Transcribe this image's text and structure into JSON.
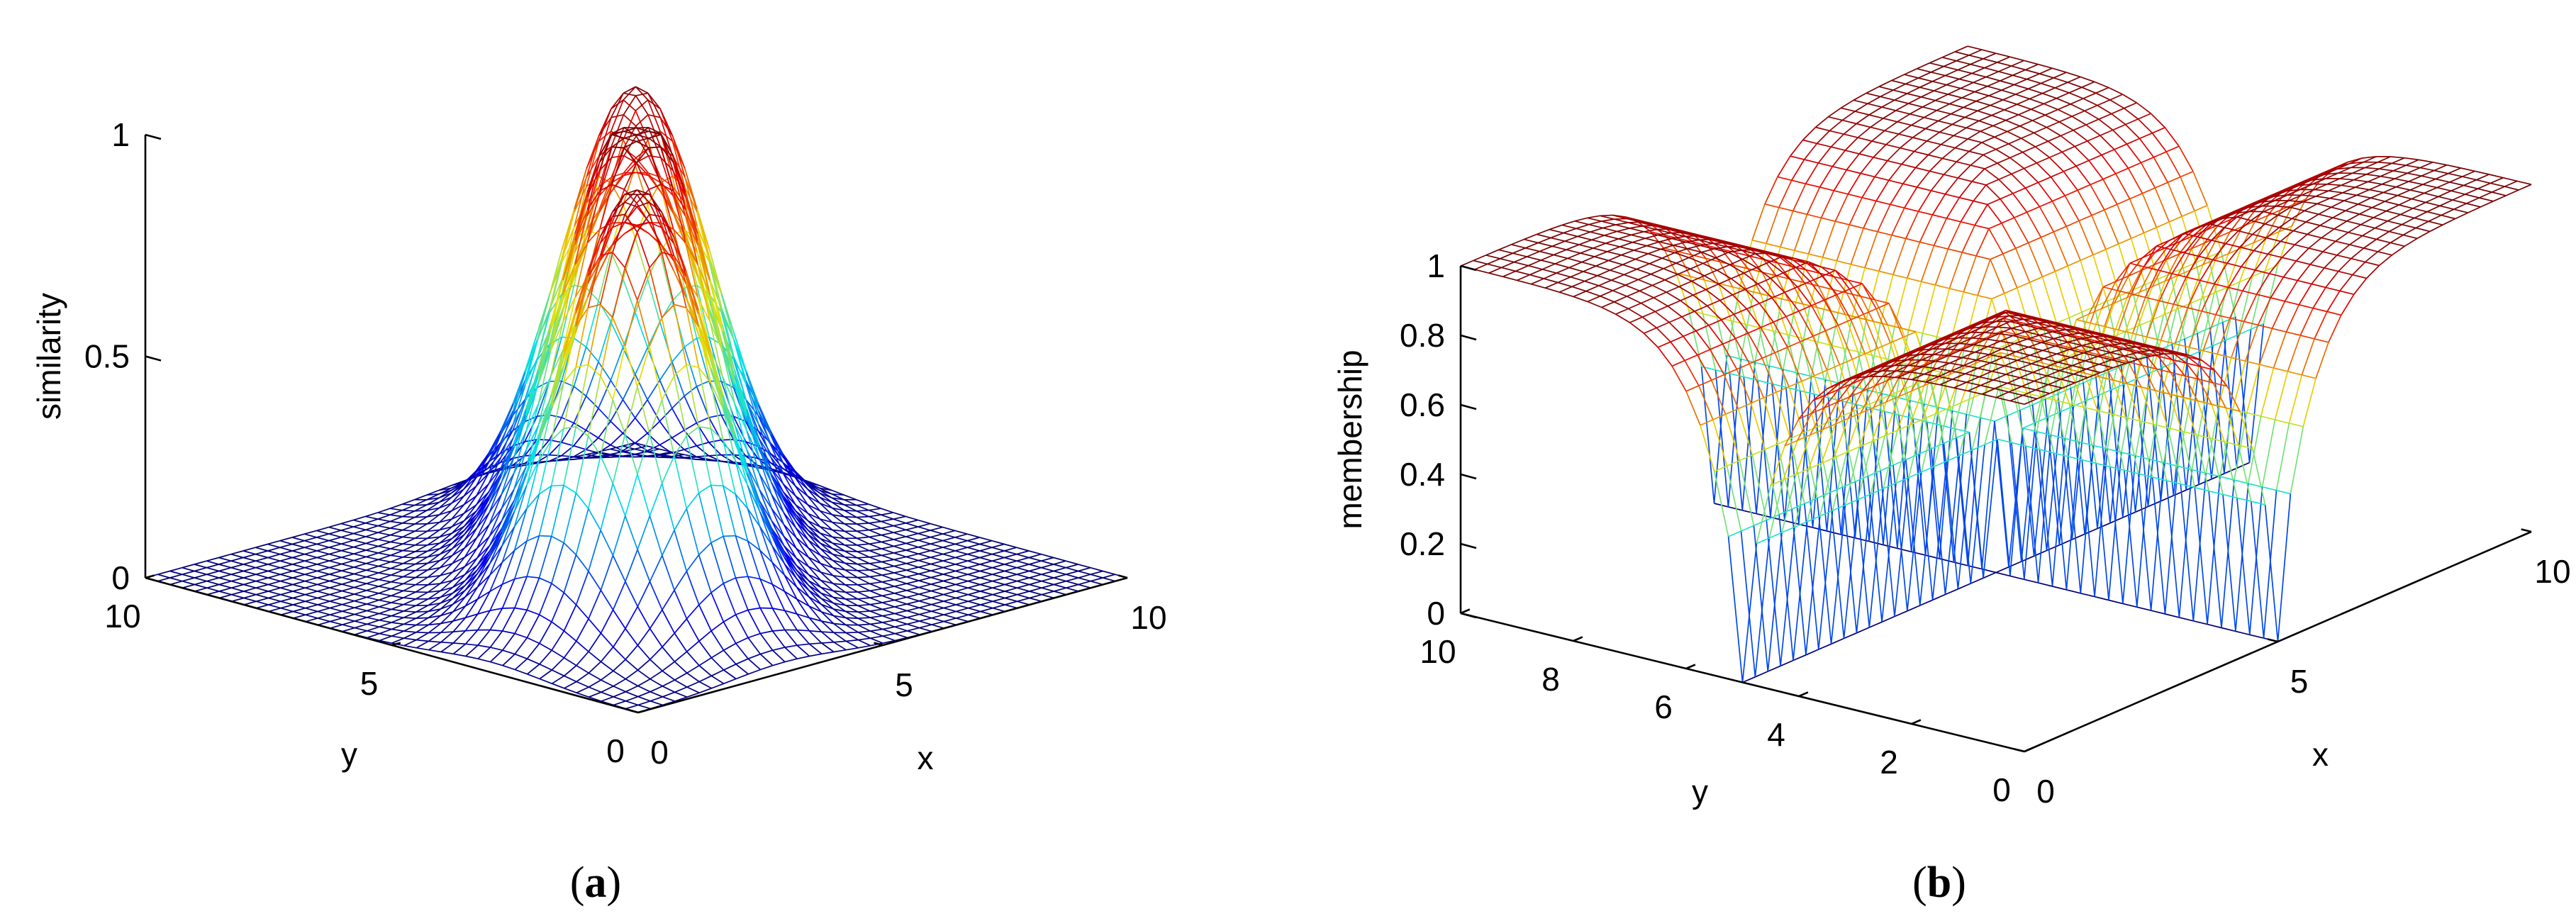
{
  "chart_data": [
    {
      "panel_label": "(a)",
      "type": "surface",
      "surface": "sum of three gaussian peaks",
      "peaks": [
        {
          "x": 7,
          "y": 7,
          "height": 0.95
        },
        {
          "x": 5,
          "y": 5,
          "height": 1.0
        },
        {
          "x": 3,
          "y": 3,
          "height": 0.95
        }
      ],
      "peak_sigma": 1.1,
      "xlabel": "x",
      "ylabel": "y",
      "zlabel": "similarity",
      "xlim": [
        0,
        10
      ],
      "ylim": [
        0,
        10
      ],
      "zlim": [
        0,
        1
      ],
      "x_ticks": [
        "0",
        "5",
        "10"
      ],
      "y_ticks": [
        "0",
        "5",
        "10"
      ],
      "z_ticks": [
        "0",
        "0.5",
        "1"
      ],
      "grid_n": 40,
      "colormap": "jet",
      "grid": false
    },
    {
      "panel_label": "(b)",
      "type": "surface",
      "surface": "max of sigmoid membership along x=5 and y=5 diagonals",
      "xlabel": "x",
      "ylabel": "y",
      "zlabel": "membership",
      "xlim": [
        0,
        10
      ],
      "ylim": [
        0,
        10
      ],
      "zlim": [
        0,
        1
      ],
      "x_ticks": [
        "0",
        "5",
        "10"
      ],
      "y_ticks": [
        "0",
        "2",
        "4",
        "6",
        "8",
        "10"
      ],
      "z_ticks": [
        "0",
        "0.2",
        "0.4",
        "0.6",
        "0.8",
        "1"
      ],
      "sigmoid_center": 5,
      "sigmoid_steepness": 1.6,
      "grid_n": 40,
      "colormap": "jet",
      "grid": false
    }
  ]
}
